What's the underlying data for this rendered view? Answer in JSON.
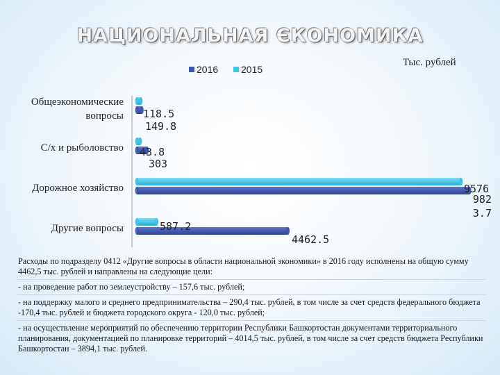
{
  "slide": {
    "title": "НАЦИОНАЛЬНАЯ ЄКОНОМИКА",
    "unit": "Тыс. рублей"
  },
  "colors": {
    "series_2016": "#3b55b0",
    "series_2015": "#3cc3e6",
    "axis": "#999999"
  },
  "chart_data": {
    "type": "bar",
    "orientation": "horizontal",
    "categories": [
      "Общеэкономические вопросы",
      "С/х и рыболовство",
      "Дорожное хозяйство",
      "Другие вопросы"
    ],
    "category_lines": [
      [
        "Общеэкономические",
        "вопросы"
      ],
      [
        "С/х и рыболовство"
      ],
      [
        "Дорожное хозяйство"
      ],
      [
        "Другие вопросы"
      ]
    ],
    "series": [
      {
        "name": "2016",
        "color": "#3b55b0",
        "values": [
          149.8,
          303,
          9823.7,
          4462.5
        ],
        "labels": [
          "149.8",
          "303",
          "982\n3.7",
          "4462.5"
        ]
      },
      {
        "name": "2015",
        "color": "#3cc3e6",
        "values": [
          118.5,
          43.8,
          9576,
          587.2
        ],
        "labels": [
          "118.5",
          "43.8",
          "9576",
          "587.2"
        ]
      }
    ],
    "legend": [
      "2016",
      "2015"
    ],
    "legend_position": "top",
    "xlim": [
      0,
      9823.7
    ],
    "grid": false
  },
  "notes": [
    "Расходы по подразделу 0412 «Другие вопросы в области национальной экономики» в 2016 году исполнены на общую сумму 4462,5 тыс. рублей и направлены на следующие цели:",
    "- на проведение работ по землеустройству – 157,6 тыс. рублей;",
    "- на поддержку малого и среднего предпринимательства – 290,4 тыс. рублей, в том числе за счет средств федерального бюджета -170,4 тыс. рублей и бюджета городского округа - 120,0 тыс. рублей;",
    "- на осуществление мероприятий по обеспечению территории Республики Башкортостан документами территориального планирования, документацией по планировке территорий – 4014,5 тыс. рублей, в том числе за счет средств бюджета Республики Башкортостан – 3894,1 тыс. рублей."
  ]
}
